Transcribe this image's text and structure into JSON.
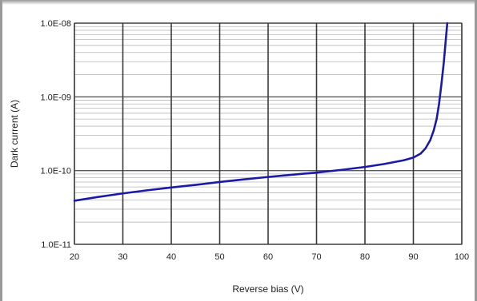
{
  "chart_data": {
    "type": "line",
    "title": "",
    "xlabel": "Reverse bias (V)",
    "ylabel": "Dark current  (A)",
    "x_scale": "linear",
    "y_scale": "log",
    "xlim": [
      20,
      100
    ],
    "ylim": [
      1e-11,
      1e-08
    ],
    "x_ticks": [
      20,
      30,
      40,
      50,
      60,
      70,
      80,
      90,
      100
    ],
    "y_ticks": [
      1e-11,
      1e-10,
      1e-09,
      1e-08
    ],
    "y_tick_labels": [
      "1.0E-11",
      "1.0E-10",
      "1.0E-09",
      "1.0E-08"
    ],
    "grid": true,
    "minor_grid_y": true,
    "series": [
      {
        "color": "#1a1aa6",
        "x": [
          20,
          25,
          30,
          35,
          40,
          45,
          50,
          55,
          60,
          65,
          70,
          75,
          80,
          84,
          88,
          90,
          91.5,
          92.5,
          93.5,
          94.2,
          94.8,
          95.3,
          95.8,
          96.3,
          96.7,
          97.0
        ],
        "y": [
          3.9e-11,
          4.4e-11,
          4.9e-11,
          5.4e-11,
          5.9e-11,
          6.4e-11,
          7e-11,
          7.6e-11,
          8.2e-11,
          8.8e-11,
          9.4e-11,
          1.02e-10,
          1.12e-10,
          1.23e-10,
          1.38e-10,
          1.5e-10,
          1.7e-10,
          2e-10,
          2.6e-10,
          3.5e-10,
          5e-10,
          8e-10,
          1.5e-09,
          3e-09,
          6e-09,
          1e-08
        ]
      }
    ]
  }
}
